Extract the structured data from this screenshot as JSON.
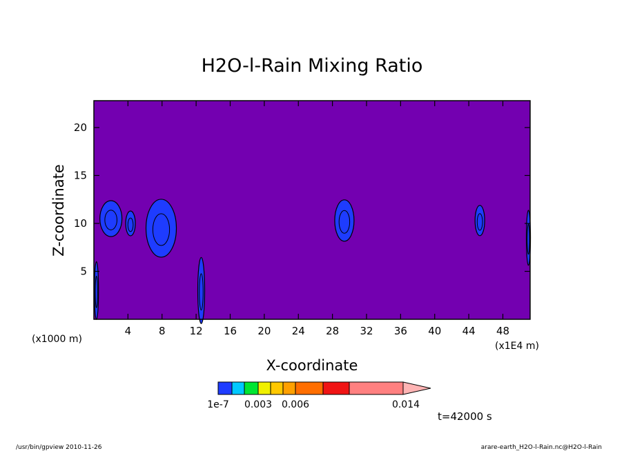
{
  "chart_data": {
    "type": "heatmap",
    "title": "H2O-l-Rain Mixing Ratio",
    "xlabel": "X-coordinate",
    "ylabel": "Z-coordinate",
    "x_unit_left": "(x1000 m)",
    "x_unit_right": "(x1E4 m)",
    "xlim": [
      0,
      51.2
    ],
    "ylim": [
      0,
      22.8
    ],
    "x_ticks": [
      4,
      8,
      12,
      16,
      20,
      24,
      28,
      32,
      36,
      40,
      44,
      48
    ],
    "y_ticks": [
      5,
      10,
      15,
      20
    ],
    "background_color": "#7300b0",
    "colorbar": {
      "levels": [
        "1e-7",
        "0.001",
        "0.002",
        "0.003",
        "0.004",
        "0.005",
        "0.006",
        "0.008",
        "0.010",
        "0.012",
        "0.014"
      ],
      "tick_labels": [
        "1e-7",
        "0.003",
        "0.006",
        "0.014"
      ],
      "colors": [
        "#1e3cff",
        "#00c8ff",
        "#00e632",
        "#f0f000",
        "#ffc800",
        "#ffa000",
        "#ff6e00",
        "#f01414",
        "#ff8080",
        "#ffb4b4"
      ]
    },
    "features": [
      {
        "x": 0.3,
        "z": 3,
        "max_level": "1e-7"
      },
      {
        "x": 2.0,
        "z": 10.5,
        "max_level": "1e-7"
      },
      {
        "x": 4.3,
        "z": 10,
        "max_level": "1e-7"
      },
      {
        "x": 7.9,
        "z": 9.5,
        "max_level": "1e-7"
      },
      {
        "x": 12.6,
        "z": 3,
        "max_level": "1e-7"
      },
      {
        "x": 29.4,
        "z": 10.3,
        "max_level": "1e-7"
      },
      {
        "x": 45.3,
        "z": 10.3,
        "max_level": "1e-7"
      },
      {
        "x": 51.0,
        "z": 8.5,
        "max_level": "1e-7"
      }
    ]
  },
  "annotation_time": "t=42000 s",
  "footer_left": "/usr/bin/gpview  2010-11-26",
  "footer_right": "arare-earth_H2O-l-Rain.nc@H2O-l-Rain"
}
